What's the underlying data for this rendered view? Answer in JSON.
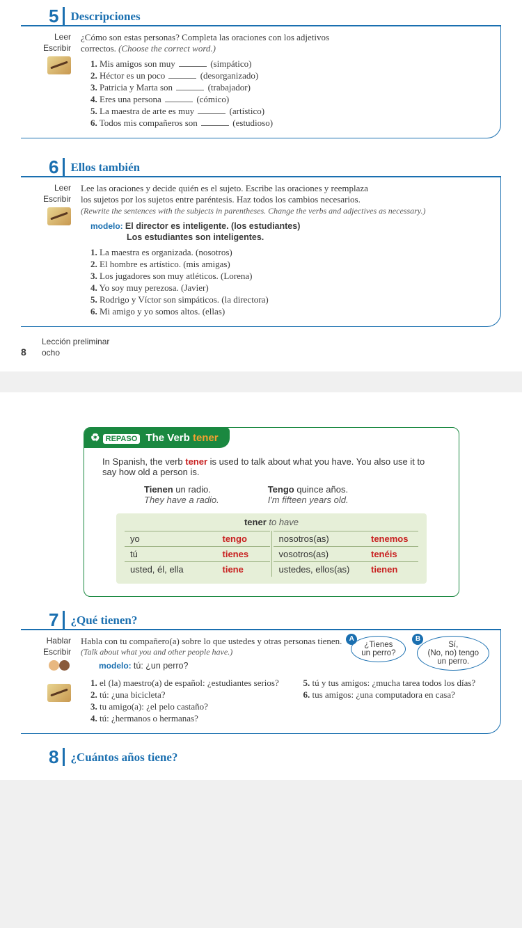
{
  "ex5": {
    "num": "5",
    "title": "Descripciones",
    "skills": [
      "Leer",
      "Escribir"
    ],
    "instr1": "¿Cómo son estas personas? Completa las oraciones con los adjetivos",
    "instr2": "correctos. ",
    "instr2_ital": "(Choose the correct word.)",
    "items": [
      {
        "n": "1.",
        "t": "Mis amigos son muy ",
        "p": "(simpático)"
      },
      {
        "n": "2.",
        "t": "Héctor es un poco ",
        "p": "(desorganizado)"
      },
      {
        "n": "3.",
        "t": "Patricia y Marta son ",
        "p": "(trabajador)"
      },
      {
        "n": "4.",
        "t": "Eres una persona ",
        "p": "(cómico)"
      },
      {
        "n": "5.",
        "t": "La maestra de arte es muy ",
        "p": "(artístico)"
      },
      {
        "n": "6.",
        "t": "Todos mis compañeros son ",
        "p": "(estudioso)"
      }
    ]
  },
  "ex6": {
    "num": "6",
    "title": "Ellos también",
    "skills": [
      "Leer",
      "Escribir"
    ],
    "instr1": "Lee las oraciones y decide quién es el sujeto. Escribe las oraciones y reemplaza",
    "instr2": "los sujetos por los sujetos entre paréntesis. Haz todos los cambios necesarios.",
    "instr3_ital": "(Rewrite the sentences with the subjects in parentheses. Change the verbs and adjectives as necessary.)",
    "modelo_label": "modelo:",
    "modelo_l1": "El director es inteligente. (los estudiantes)",
    "modelo_l2": "Los estudiantes son inteligentes.",
    "items": [
      {
        "n": "1.",
        "t": "La maestra es organizada. (nosotros)"
      },
      {
        "n": "2.",
        "t": "El hombre es artístico. (mis amigas)"
      },
      {
        "n": "3.",
        "t": "Los jugadores son muy atléticos. (Lorena)"
      },
      {
        "n": "4.",
        "t": "Yo soy muy perezosa. (Javier)"
      },
      {
        "n": "5.",
        "t": "Rodrigo y Víctor son simpáticos. (la directora)"
      },
      {
        "n": "6.",
        "t": "Mi amigo y yo somos altos. (ellas)"
      }
    ]
  },
  "footer": {
    "line1": "Lección preliminar",
    "num": "8",
    "word": "ocho"
  },
  "repaso": {
    "badge": "REPASO",
    "title_pre": "The Verb ",
    "title_verb": "tener",
    "intro1": "In Spanish, the verb ",
    "intro_verb": "tener",
    "intro2": " is used to talk about what you have. You also use it to say how old a person is.",
    "ex_a_bold": "Tienen",
    "ex_a_rest": " un radio.",
    "ex_a_ital": "They have a radio.",
    "ex_b_bold": "Tengo",
    "ex_b_rest": " quince años.",
    "ex_b_ital": "I'm fifteen years old.",
    "table_title_bold": "tener",
    "table_title_ital": " to have",
    "rows": [
      {
        "p1": "yo",
        "v1": "tengo",
        "p2": "nosotros(as)",
        "v2": "tenemos"
      },
      {
        "p1": "tú",
        "v1": "tienes",
        "p2": "vosotros(as)",
        "v2": "tenéis"
      },
      {
        "p1": "usted, él, ella",
        "v1": "tiene",
        "p2": "ustedes, ellos(as)",
        "v2": "tienen"
      }
    ]
  },
  "ex7": {
    "num": "7",
    "title": "¿Qué tienen?",
    "skills": [
      "Hablar",
      "Escribir"
    ],
    "instr1": "Habla con tu compañero(a) sobre lo que ustedes y otras personas tienen.",
    "instr2_ital": "(Talk about what you and other people have.)",
    "modelo_label": "modelo:",
    "modelo_txt": "tú: ¿un perro?",
    "bubbleA_l1": "¿Tienes",
    "bubbleA_l2": "un perro?",
    "bubbleB_l1": "Sí,",
    "bubbleB_l2": "(No, no) tengo",
    "bubbleB_l3": "un perro.",
    "left": [
      {
        "n": "1.",
        "t": "el (la) maestro(a) de español: ¿estudiantes serios?"
      },
      {
        "n": "2.",
        "t": "tú: ¿una bicicleta?"
      },
      {
        "n": "3.",
        "t": "tu amigo(a): ¿el pelo castaño?"
      },
      {
        "n": "4.",
        "t": "tú: ¿hermanos o hermanas?"
      }
    ],
    "right": [
      {
        "n": "5.",
        "t": "tú y tus amigos: ¿mucha tarea todos los días?"
      },
      {
        "n": "6.",
        "t": "tus amigos: ¿una computadora en casa?"
      }
    ]
  },
  "colors": {
    "blue": "#1a6fb0",
    "green": "#1a8840",
    "red": "#c82020",
    "orange": "#f5a030",
    "table_bg": "#e6efd8"
  }
}
